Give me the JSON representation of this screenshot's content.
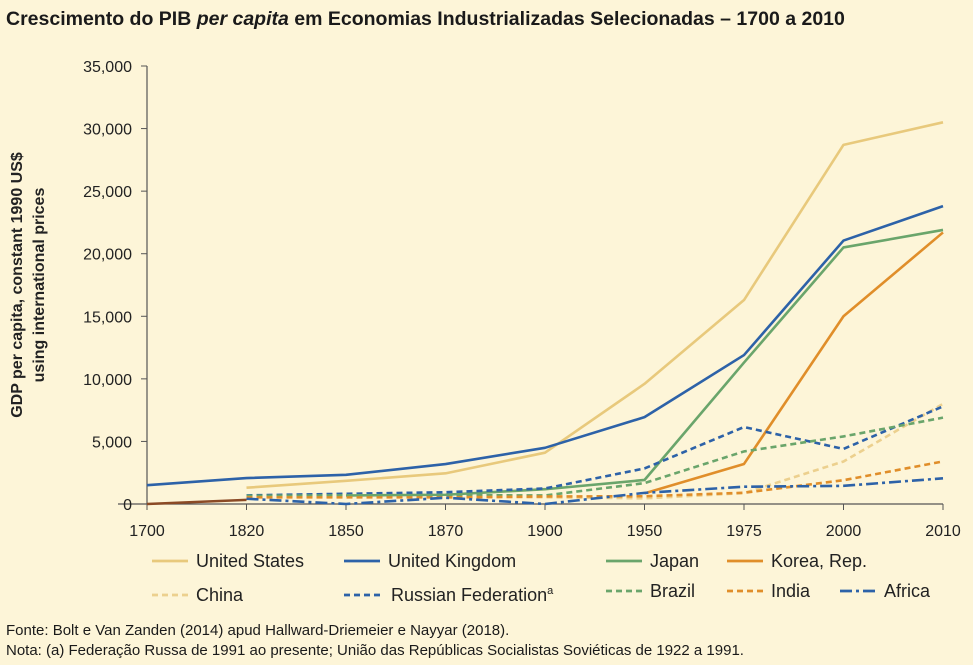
{
  "title_parts": {
    "pre": "Crescimento do PIB ",
    "italic": "per capita",
    "post": " em Economias Industrializadas Selecionadas – 1700 a 2010"
  },
  "source_note": "Fonte: Bolt e Van Zanden (2014) apud Hallward-Driemeier e Nayyar (2018).",
  "footnote": "Nota: (a) Federação Russa de 1991 ao presente; União das Repúblicas Socialistas Soviéticas de 1922 a 1991.",
  "chart_data": {
    "type": "line",
    "ylabel_lines": [
      "GDP per capita, constant 1990 US$",
      "using international prices"
    ],
    "xlabel": "",
    "x": [
      1700,
      1820,
      1850,
      1870,
      1900,
      1950,
      1975,
      2000,
      2010
    ],
    "x_tick_labels": [
      "1700",
      "1820",
      "1850",
      "1870",
      "1900",
      "1950",
      "1975",
      "2000",
      "2010"
    ],
    "y_ticks": [
      0,
      5000,
      10000,
      15000,
      20000,
      25000,
      30000,
      35000
    ],
    "y_tick_labels": [
      "0",
      "5,000",
      "10,000",
      "15,000",
      "20,000",
      "25,000",
      "30,000",
      "35,000"
    ],
    "ylim": [
      0,
      35000
    ],
    "grid": false,
    "legend_position": "bottom",
    "series": [
      {
        "name": "United States",
        "style": "solid",
        "color": "#e8c97c",
        "points": [
          [
            1820,
            1300
          ],
          [
            1850,
            1850
          ],
          [
            1870,
            2450
          ],
          [
            1900,
            4100
          ],
          [
            1950,
            9600
          ],
          [
            1975,
            16300
          ],
          [
            2000,
            28700
          ],
          [
            2010,
            30500
          ]
        ]
      },
      {
        "name": "United Kingdom",
        "style": "solid",
        "color": "#2d62a8",
        "points": [
          [
            1700,
            1500
          ],
          [
            1820,
            2070
          ],
          [
            1850,
            2330
          ],
          [
            1870,
            3190
          ],
          [
            1900,
            4490
          ],
          [
            1950,
            6940
          ],
          [
            1975,
            11900
          ],
          [
            2000,
            21050
          ],
          [
            2010,
            23800
          ]
        ]
      },
      {
        "name": "Japan",
        "style": "solid",
        "color": "#6aa56b",
        "points": [
          [
            1850,
            680
          ],
          [
            1870,
            740
          ],
          [
            1900,
            1180
          ],
          [
            1950,
            1920
          ],
          [
            1975,
            11300
          ],
          [
            2000,
            20500
          ],
          [
            2010,
            21900
          ]
        ]
      },
      {
        "name": "Korea, Rep.",
        "style": "solid",
        "color": "#e08e2a",
        "points": [
          [
            1950,
            850
          ],
          [
            1975,
            3200
          ],
          [
            2000,
            15000
          ],
          [
            2010,
            21700
          ]
        ]
      },
      {
        "name": "China",
        "style": "dashed",
        "color": "#ecd08e",
        "points": [
          [
            1820,
            600
          ],
          [
            1850,
            600
          ],
          [
            1870,
            530
          ],
          [
            1900,
            545
          ],
          [
            1950,
            450
          ],
          [
            1975,
            870
          ],
          [
            2000,
            3400
          ],
          [
            2010,
            8000
          ]
        ]
      },
      {
        "name": "Russian Federation",
        "name_sup": "a",
        "style": "dashed",
        "color": "#2d62a8",
        "points": [
          [
            1820,
            690
          ],
          [
            1870,
            940
          ],
          [
            1900,
            1240
          ],
          [
            1950,
            2840
          ],
          [
            1975,
            6150
          ],
          [
            2000,
            4400
          ],
          [
            2010,
            7800
          ]
        ]
      },
      {
        "name": "Brazil",
        "style": "dashed",
        "color": "#6aa56b",
        "points": [
          [
            1820,
            650
          ],
          [
            1850,
            690
          ],
          [
            1870,
            710
          ],
          [
            1900,
            680
          ],
          [
            1950,
            1670
          ],
          [
            1975,
            4200
          ],
          [
            2000,
            5400
          ],
          [
            2010,
            6900
          ]
        ]
      },
      {
        "name": "India",
        "style": "dashed",
        "color": "#e08e2a",
        "points": [
          [
            1820,
            530
          ],
          [
            1870,
            530
          ],
          [
            1900,
            600
          ],
          [
            1950,
            620
          ],
          [
            1975,
            900
          ],
          [
            2000,
            1900
          ],
          [
            2010,
            3400
          ]
        ]
      },
      {
        "name": "Africa",
        "style": "dashdot",
        "color": "#2d62a8",
        "points": [
          [
            1820,
            420
          ],
          [
            1850,
            0
          ],
          [
            1870,
            500
          ],
          [
            1900,
            0
          ],
          [
            1950,
            890
          ],
          [
            1975,
            1380
          ],
          [
            2000,
            1450
          ],
          [
            2010,
            2050
          ]
        ]
      },
      {
        "name": "",
        "style": "solid",
        "color": "#8b4a25",
        "points": [
          [
            1700,
            0
          ],
          [
            1820,
            330
          ]
        ]
      }
    ]
  }
}
